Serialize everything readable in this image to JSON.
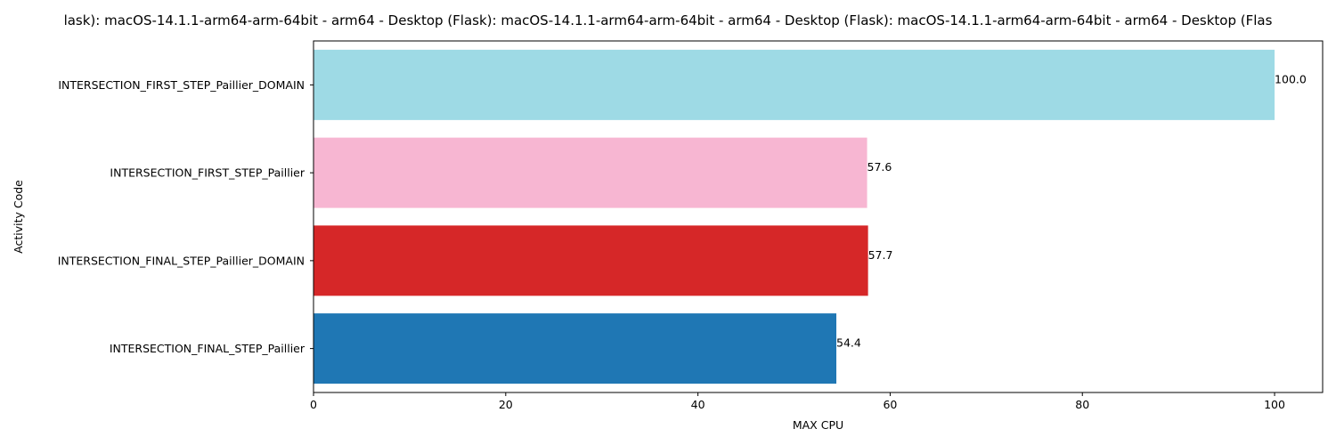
{
  "chart_data": {
    "type": "bar",
    "orientation": "horizontal",
    "title": "lask): macOS-14.1.1-arm64-arm-64bit - arm64 - Desktop (Flask): macOS-14.1.1-arm64-arm-64bit - arm64 - Desktop (Flask): macOS-14.1.1-arm64-arm-64bit - arm64 - Desktop (Flas",
    "xlabel": "MAX CPU",
    "ylabel": "Activity Code",
    "xlim": [
      0,
      105
    ],
    "xticks": [
      "0",
      "20",
      "40",
      "60",
      "80",
      "100"
    ],
    "grid": false,
    "categories": [
      "INTERSECTION_FIRST_STEP_Paillier_DOMAIN",
      "INTERSECTION_FIRST_STEP_Paillier",
      "INTERSECTION_FINAL_STEP_Paillier_DOMAIN",
      "INTERSECTION_FINAL_STEP_Paillier"
    ],
    "values": [
      100.0,
      57.6,
      57.7,
      54.4
    ],
    "value_labels": [
      "100.0",
      "57.6",
      "57.7",
      "54.4"
    ],
    "colors": [
      "#9edae5",
      "#f7b6d2",
      "#d62728",
      "#1f77b4"
    ]
  }
}
